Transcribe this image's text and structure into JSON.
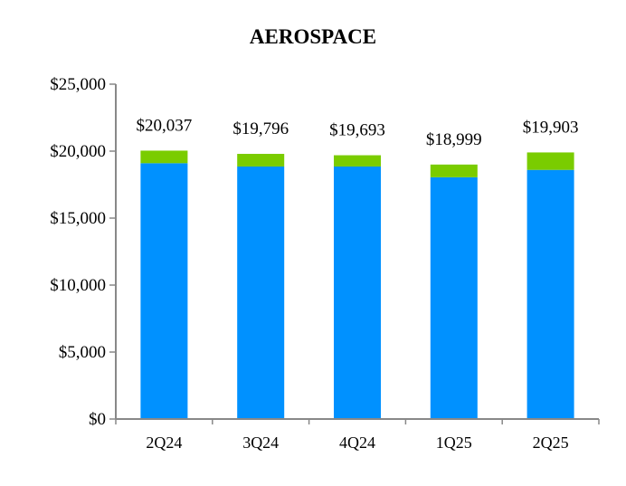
{
  "chart_data": {
    "type": "bar",
    "stacked": true,
    "title": "AEROSPACE",
    "xlabel": "",
    "ylabel": "",
    "categories": [
      "2Q24",
      "3Q24",
      "4Q24",
      "1Q25",
      "2Q25"
    ],
    "series": [
      {
        "values": [
          19100,
          18850,
          18850,
          18050,
          18600
        ],
        "color": "#0091FF"
      },
      {
        "values": [
          937,
          946,
          843,
          949,
          1303
        ],
        "color": "#7ACC00"
      }
    ],
    "totals": [
      "$20,037",
      "$19,796",
      "$19,693",
      "$18,999",
      "$19,903"
    ],
    "total_values": [
      20037,
      19796,
      19693,
      18999,
      19903
    ],
    "ylim": [
      0,
      25000
    ],
    "yticks": [
      0,
      5000,
      10000,
      15000,
      20000,
      25000
    ],
    "ytick_labels": [
      "$0",
      "$5,000",
      "$10,000",
      "$15,000",
      "$20,000",
      "$25,000"
    ],
    "grid": false,
    "legend": "none"
  }
}
